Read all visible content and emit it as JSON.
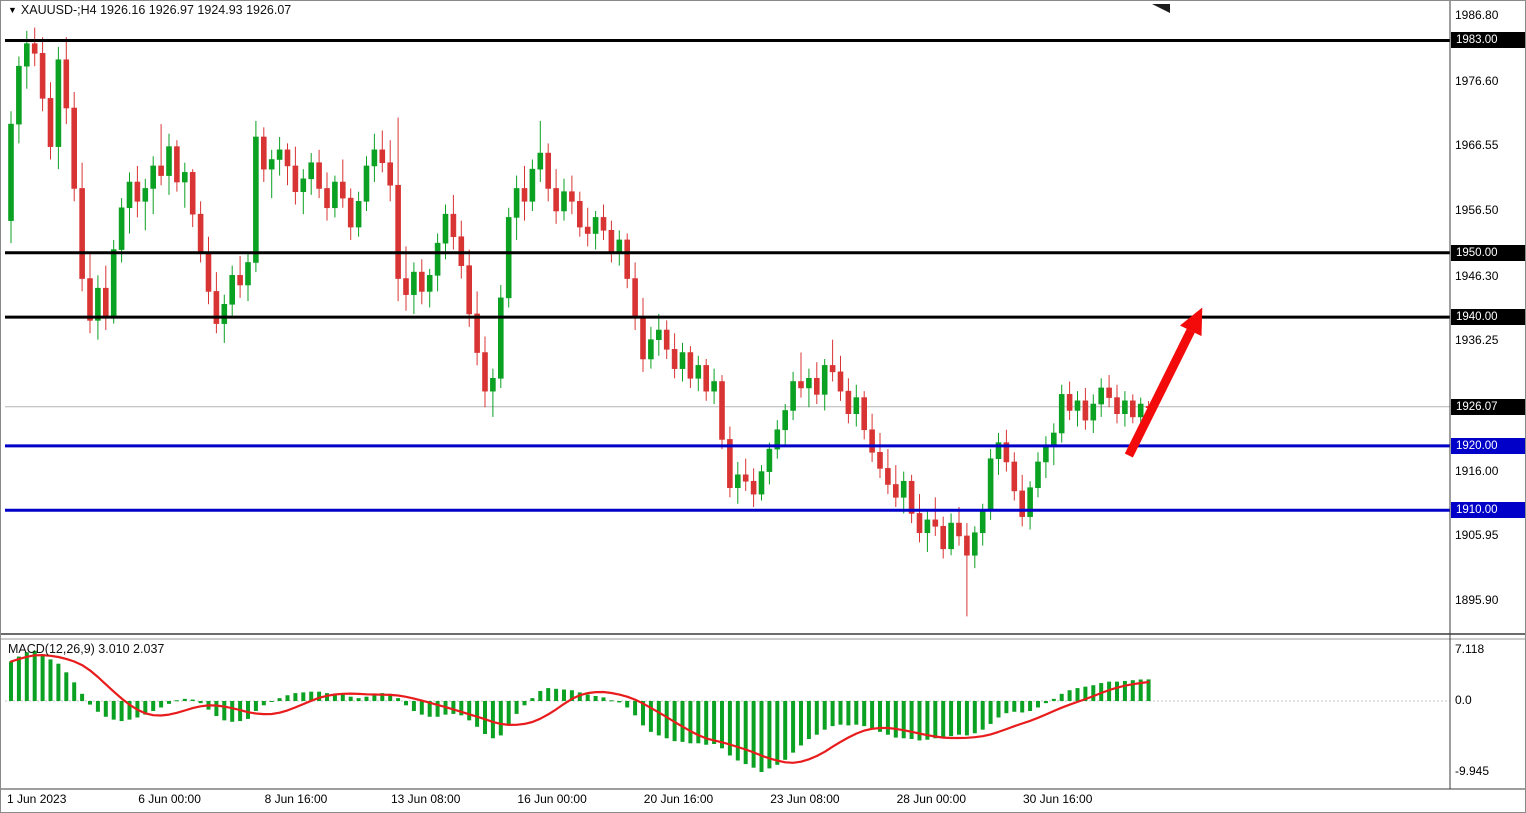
{
  "header": {
    "title": "XAUUSD-;H4 1926.16 1926.97 1924.93 1926.07",
    "dropdown_marker": "▼"
  },
  "chart_data": {
    "type": "candlestick",
    "symbol": "XAUUSD-",
    "timeframe": "H4",
    "current_ohlc": {
      "open": "1926.16",
      "high": "1926.97",
      "low": "1924.93",
      "close": "1926.07"
    },
    "colors": {
      "bull": "#0ba122",
      "bear": "#d93434",
      "level_black": "#000000",
      "level_blue": "#0000c8",
      "signal": "#e81c1c",
      "arrow": "#f30b0b",
      "bid_line": "#b4b4b4",
      "background": "#ffffff"
    },
    "y_axis_ticks": [
      {
        "value": 1986.8,
        "label": "1986.80"
      },
      {
        "value": 1976.6,
        "label": "1976.60"
      },
      {
        "value": 1966.55,
        "label": "1966.55"
      },
      {
        "value": 1956.5,
        "label": "1956.50"
      },
      {
        "value": 1946.3,
        "label": "1946.30"
      },
      {
        "value": 1936.25,
        "label": "1936.25"
      },
      {
        "value": 1916.0,
        "label": "1916.00"
      },
      {
        "value": 1905.95,
        "label": "1905.95"
      },
      {
        "value": 1895.9,
        "label": "1895.90"
      }
    ],
    "price_levels": [
      {
        "price": 1983.0,
        "label": "1983.00",
        "color": "#000000"
      },
      {
        "price": 1950.0,
        "label": "1950.00",
        "color": "#000000"
      },
      {
        "price": 1940.0,
        "label": "1940.00",
        "color": "#000000"
      },
      {
        "price": 1920.0,
        "label": "1920.00",
        "color": "#0000c8"
      },
      {
        "price": 1910.0,
        "label": "1910.00",
        "color": "#0000c8"
      }
    ],
    "bid_line": {
      "price": 1926.07,
      "label": "1926.07",
      "badge_color": "#000000"
    },
    "x_axis_labels": [
      {
        "text": "1 Jun 2023",
        "index": 0
      },
      {
        "text": "6 Jun 00:00",
        "index": 18
      },
      {
        "text": "8 Jun 16:00",
        "index": 34
      },
      {
        "text": "13 Jun 08:00",
        "index": 50
      },
      {
        "text": "16 Jun 00:00",
        "index": 66
      },
      {
        "text": "20 Jun 16:00",
        "index": 82
      },
      {
        "text": "23 Jun 08:00",
        "index": 98
      },
      {
        "text": "28 Jun 00:00",
        "index": 114
      },
      {
        "text": "30 Jun 16:00",
        "index": 130
      }
    ],
    "annotation_arrow": {
      "from": {
        "index": 141.5,
        "price": 1918.5
      },
      "to": {
        "index": 150.8,
        "price": 1941.5
      },
      "color": "#f30b0b"
    },
    "candles_ohlc": [
      [
        1955,
        1972,
        1951.5,
        1970
      ],
      [
        1970,
        1980.5,
        1967,
        1979
      ],
      [
        1979,
        1984.5,
        1975.5,
        1982.5
      ],
      [
        1982.5,
        1985,
        1979,
        1981
      ],
      [
        1981,
        1983.5,
        1972,
        1974
      ],
      [
        1974,
        1976.5,
        1964.5,
        1966.5
      ],
      [
        1966.5,
        1982,
        1963,
        1980
      ],
      [
        1980,
        1983.5,
        1970,
        1972.5
      ],
      [
        1972.5,
        1975,
        1958,
        1960
      ],
      [
        1960,
        1964,
        1944,
        1946
      ],
      [
        1946,
        1950,
        1937.5,
        1939.5
      ],
      [
        1939.5,
        1946.5,
        1936.5,
        1944.5
      ],
      [
        1944.5,
        1948,
        1938,
        1940
      ],
      [
        1940,
        1952,
        1939,
        1950.5
      ],
      [
        1950.5,
        1958.5,
        1948.5,
        1957
      ],
      [
        1957,
        1962.5,
        1953,
        1961
      ],
      [
        1961,
        1963.5,
        1955.5,
        1958
      ],
      [
        1958,
        1961.5,
        1953.5,
        1960
      ],
      [
        1960,
        1965,
        1956,
        1963.5
      ],
      [
        1963.5,
        1970,
        1960.5,
        1962
      ],
      [
        1962,
        1968.5,
        1959,
        1966.5
      ],
      [
        1966.5,
        1967.5,
        1959.5,
        1961
      ],
      [
        1961,
        1964,
        1957,
        1962.5
      ],
      [
        1962.5,
        1963,
        1954,
        1956
      ],
      [
        1956,
        1958,
        1948.5,
        1950
      ],
      [
        1950,
        1952.5,
        1942,
        1944
      ],
      [
        1944,
        1947,
        1937.5,
        1939
      ],
      [
        1939,
        1943.5,
        1936,
        1942
      ],
      [
        1942,
        1948,
        1940,
        1946.5
      ],
      [
        1946.5,
        1949.5,
        1943,
        1945
      ],
      [
        1945,
        1950,
        1942.5,
        1948.5
      ],
      [
        1948.5,
        1970.5,
        1947,
        1968
      ],
      [
        1968,
        1969.5,
        1961,
        1963
      ],
      [
        1963,
        1966,
        1958.5,
        1964.5
      ],
      [
        1964.5,
        1968,
        1962,
        1966
      ],
      [
        1966,
        1967,
        1960.5,
        1963.5
      ],
      [
        1963.5,
        1966.5,
        1957.5,
        1959.5
      ],
      [
        1959.5,
        1963,
        1956,
        1961.5
      ],
      [
        1961.5,
        1965.5,
        1959,
        1964
      ],
      [
        1964,
        1966,
        1958.5,
        1960
      ],
      [
        1960,
        1962.5,
        1955,
        1957
      ],
      [
        1957,
        1962,
        1955.5,
        1961
      ],
      [
        1961,
        1964.5,
        1957,
        1958.5
      ],
      [
        1958.5,
        1960,
        1952,
        1954
      ],
      [
        1954,
        1959.5,
        1952.5,
        1958
      ],
      [
        1958,
        1965,
        1956.5,
        1963.5
      ],
      [
        1963.5,
        1968.5,
        1961,
        1966
      ],
      [
        1966,
        1969,
        1962.5,
        1964
      ],
      [
        1964,
        1967.5,
        1958,
        1960.5
      ],
      [
        1960.5,
        1971,
        1942.5,
        1946
      ],
      [
        1946,
        1951,
        1941,
        1943.5
      ],
      [
        1943.5,
        1948.5,
        1940.5,
        1947
      ],
      [
        1947,
        1949,
        1942,
        1944
      ],
      [
        1944,
        1947.5,
        1941.5,
        1946.5
      ],
      [
        1946.5,
        1953,
        1944,
        1951.5
      ],
      [
        1951.5,
        1957.5,
        1949,
        1956
      ],
      [
        1956,
        1959,
        1950.5,
        1952.5
      ],
      [
        1952.5,
        1955,
        1946,
        1948
      ],
      [
        1948,
        1950.5,
        1938.5,
        1940.5
      ],
      [
        1940.5,
        1944,
        1932.5,
        1934.5
      ],
      [
        1934.5,
        1937,
        1926,
        1928.5
      ],
      [
        1928.5,
        1932,
        1924.5,
        1930.5
      ],
      [
        1930.5,
        1945,
        1929,
        1943
      ],
      [
        1943,
        1957,
        1941.5,
        1955.5
      ],
      [
        1955.5,
        1962,
        1952,
        1960
      ],
      [
        1960,
        1963.5,
        1955,
        1958
      ],
      [
        1958,
        1964.5,
        1956.5,
        1963
      ],
      [
        1963,
        1970.5,
        1961,
        1965.5
      ],
      [
        1965.5,
        1967,
        1958,
        1960
      ],
      [
        1960,
        1963,
        1954.5,
        1956.5
      ],
      [
        1956.5,
        1961.5,
        1955,
        1959.5
      ],
      [
        1959.5,
        1962,
        1956,
        1958
      ],
      [
        1958,
        1959.5,
        1952.5,
        1954
      ],
      [
        1954,
        1957,
        1951,
        1953
      ],
      [
        1953,
        1956.5,
        1950.5,
        1955.5
      ],
      [
        1955.5,
        1957.5,
        1952,
        1953.5
      ],
      [
        1953.5,
        1955,
        1948.5,
        1950
      ],
      [
        1950,
        1953.5,
        1948,
        1952
      ],
      [
        1952,
        1953,
        1944.5,
        1946
      ],
      [
        1946,
        1948.5,
        1938,
        1940
      ],
      [
        1940,
        1943,
        1931.5,
        1933.5
      ],
      [
        1933.5,
        1938.5,
        1932,
        1936.5
      ],
      [
        1936.5,
        1940.5,
        1934,
        1938
      ],
      [
        1938,
        1939.5,
        1933.5,
        1935
      ],
      [
        1935,
        1937.5,
        1930.5,
        1932
      ],
      [
        1932,
        1936,
        1930,
        1934.5
      ],
      [
        1934.5,
        1935.5,
        1929,
        1930.5
      ],
      [
        1930.5,
        1934,
        1928.5,
        1932.5
      ],
      [
        1932.5,
        1933.5,
        1927,
        1928.5
      ],
      [
        1928.5,
        1932,
        1926.5,
        1930
      ],
      [
        1930,
        1931,
        1919.5,
        1921
      ],
      [
        1921,
        1923,
        1912,
        1913.5
      ],
      [
        1913.5,
        1917.5,
        1911,
        1915.5
      ],
      [
        1915.5,
        1918,
        1913,
        1914.5
      ],
      [
        1914.5,
        1916.5,
        1910.5,
        1912.5
      ],
      [
        1912.5,
        1917,
        1911.5,
        1916
      ],
      [
        1916,
        1920.5,
        1914,
        1919.5
      ],
      [
        1919.5,
        1924,
        1918,
        1922.5
      ],
      [
        1922.5,
        1926.5,
        1920,
        1925.5
      ],
      [
        1925.5,
        1931.5,
        1924,
        1930
      ],
      [
        1930,
        1934.5,
        1927.5,
        1929
      ],
      [
        1929,
        1932,
        1926,
        1930.5
      ],
      [
        1930.5,
        1933,
        1926.5,
        1928
      ],
      [
        1928,
        1933.5,
        1925.5,
        1932.5
      ],
      [
        1932.5,
        1936.5,
        1930,
        1931.5
      ],
      [
        1931.5,
        1934,
        1927,
        1928.5
      ],
      [
        1928.5,
        1930.5,
        1923.5,
        1925
      ],
      [
        1925,
        1929.5,
        1923,
        1927.5
      ],
      [
        1927.5,
        1928.5,
        1921,
        1922.5
      ],
      [
        1922.5,
        1925,
        1917.5,
        1919
      ],
      [
        1919,
        1922,
        1915,
        1916.5
      ],
      [
        1916.5,
        1919.5,
        1912.5,
        1914
      ],
      [
        1914,
        1917,
        1910.5,
        1912
      ],
      [
        1912,
        1916,
        1909.5,
        1914.5
      ],
      [
        1914.5,
        1915.5,
        1908,
        1909.5
      ],
      [
        1909.5,
        1912.5,
        1905,
        1906.5
      ],
      [
        1906.5,
        1910,
        1903.5,
        1908.5
      ],
      [
        1908.5,
        1912,
        1906,
        1907.5
      ],
      [
        1907.5,
        1909,
        1902.5,
        1904
      ],
      [
        1904,
        1909.5,
        1903,
        1908
      ],
      [
        1908,
        1910.5,
        1904.5,
        1906
      ],
      [
        1906,
        1908,
        1893.5,
        1903
      ],
      [
        1903,
        1907.5,
        1901,
        1906.5
      ],
      [
        1906.5,
        1911,
        1904.5,
        1910
      ],
      [
        1910,
        1919.5,
        1908.5,
        1918
      ],
      [
        1918,
        1922,
        1915.5,
        1920.5
      ],
      [
        1920.5,
        1922.5,
        1916,
        1917.5
      ],
      [
        1917.5,
        1919,
        1911.5,
        1913
      ],
      [
        1913,
        1915.5,
        1907.5,
        1909
      ],
      [
        1909,
        1914.5,
        1907,
        1913.5
      ],
      [
        1913.5,
        1919,
        1912,
        1917.5
      ],
      [
        1917.5,
        1921.5,
        1915,
        1920
      ],
      [
        1920,
        1923.5,
        1917,
        1922
      ],
      [
        1922,
        1929.5,
        1920.5,
        1928
      ],
      [
        1928,
        1930,
        1924,
        1925.5
      ],
      [
        1925.5,
        1928.5,
        1923,
        1927
      ],
      [
        1927,
        1929,
        1922.5,
        1924
      ],
      [
        1924,
        1928,
        1922,
        1926.5
      ],
      [
        1926.5,
        1930.5,
        1924.5,
        1929
      ],
      [
        1929,
        1931,
        1926,
        1927.5
      ],
      [
        1927.5,
        1929.5,
        1923.5,
        1925
      ],
      [
        1925,
        1928.5,
        1923,
        1927
      ],
      [
        1927,
        1928,
        1923.5,
        1924.5
      ],
      [
        1924.5,
        1927.5,
        1922.5,
        1926.5
      ],
      [
        1926.16,
        1926.97,
        1924.93,
        1926.07
      ]
    ],
    "macd": {
      "label": "MACD(12,26,9) 3.010 2.037",
      "macd_value": 3.01,
      "signal_value": 2.037,
      "signal_period": 9,
      "y_ticks": [
        {
          "value": 7.118,
          "label": "7.118"
        },
        {
          "value": 0,
          "label": "0.0"
        },
        {
          "value": -9.945,
          "label": "-9.945"
        }
      ],
      "values": [
        5.5,
        6.2,
        6.8,
        7.0,
        6.5,
        5.8,
        5.2,
        4.0,
        2.6,
        1.0,
        -0.5,
        -1.5,
        -2.2,
        -2.6,
        -2.8,
        -2.6,
        -2.3,
        -1.9,
        -1.4,
        -0.9,
        -0.4,
        0.1,
        0.3,
        0.2,
        -0.3,
        -1.2,
        -2.1,
        -2.7,
        -2.9,
        -2.8,
        -2.5,
        -1.4,
        -0.6,
        -0.1,
        0.4,
        0.8,
        1.1,
        1.2,
        1.3,
        1.3,
        1.1,
        1.0,
        0.9,
        0.6,
        0.4,
        0.6,
        0.9,
        1.1,
        1.0,
        0.4,
        -0.6,
        -1.4,
        -1.9,
        -2.2,
        -2.2,
        -1.9,
        -1.8,
        -2.0,
        -2.7,
        -3.6,
        -4.6,
        -5.2,
        -4.8,
        -3.4,
        -1.8,
        -0.6,
        0.4,
        1.4,
        1.8,
        1.7,
        1.6,
        1.5,
        1.2,
        0.9,
        0.7,
        0.5,
        0.1,
        -0.2,
        -0.9,
        -2.0,
        -3.4,
        -4.3,
        -4.8,
        -5.2,
        -5.6,
        -5.7,
        -5.9,
        -5.9,
        -6.1,
        -6.0,
        -6.6,
        -7.6,
        -8.3,
        -8.8,
        -9.3,
        -9.9,
        -9.4,
        -8.9,
        -8.2,
        -7.2,
        -6.2,
        -5.3,
        -4.7,
        -4.0,
        -3.5,
        -3.3,
        -3.4,
        -3.3,
        -3.5,
        -3.9,
        -4.3,
        -4.7,
        -5.1,
        -5.2,
        -5.3,
        -5.5,
        -5.4,
        -5.2,
        -5.2,
        -4.9,
        -4.7,
        -4.8,
        -4.5,
        -4.0,
        -3.2,
        -2.3,
        -1.7,
        -1.5,
        -1.6,
        -1.4,
        -0.9,
        -0.3,
        0.3,
        1.0,
        1.5,
        1.8,
        2.0,
        2.2,
        2.5,
        2.7,
        2.7,
        2.8,
        2.9,
        3.0,
        3.01
      ]
    }
  }
}
